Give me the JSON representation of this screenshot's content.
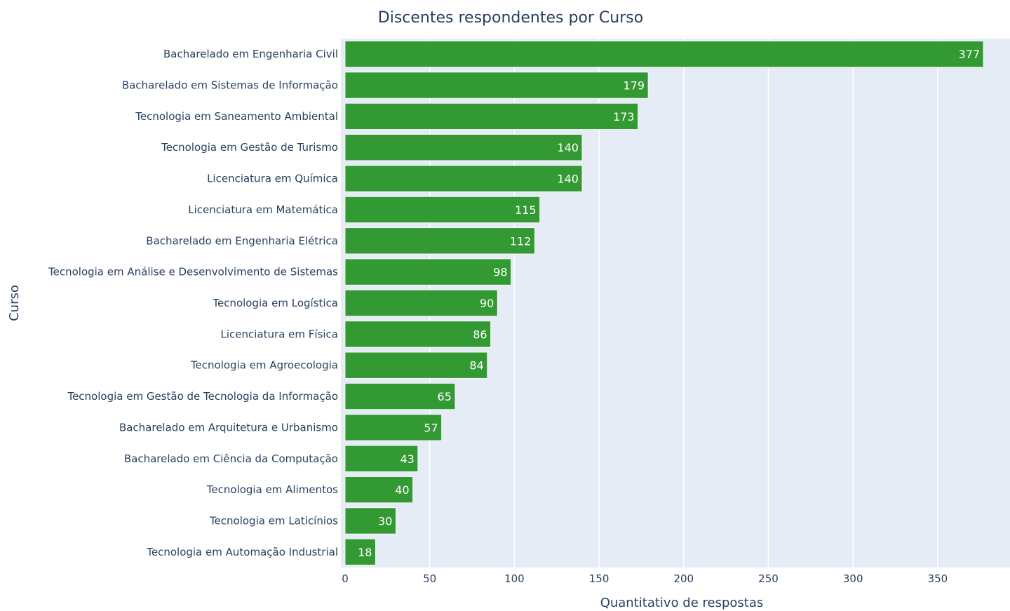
{
  "chart_data": {
    "type": "bar",
    "orientation": "horizontal",
    "title": "Discentes respondentes por Curso",
    "xlabel": "Quantitativo de respostas",
    "ylabel": "Curso",
    "xlim": [
      0,
      395
    ],
    "xticks": [
      0,
      50,
      100,
      150,
      200,
      250,
      300,
      350
    ],
    "grid": true,
    "bar_color": "#339933",
    "plot_bg": "#e5ecf6",
    "categories": [
      "Bacharelado em Engenharia Civil",
      "Bacharelado em Sistemas de Informação",
      "Tecnologia em Saneamento Ambiental",
      "Tecnologia em Gestão de Turismo",
      "Licenciatura em Química",
      "Licenciatura em Matemática",
      "Bacharelado em Engenharia Elétrica",
      "Tecnologia em Análise e Desenvolvimento de Sistemas",
      "Tecnologia em Logística",
      "Licenciatura em Física",
      "Tecnologia em Agroecologia",
      "Tecnologia em Gestão de Tecnologia da Informação",
      "Bacharelado em Arquitetura e Urbanismo",
      "Bacharelado em Ciência da Computação",
      "Tecnologia em Alimentos",
      "Tecnologia em Laticínios",
      "Tecnologia em Automação Industrial"
    ],
    "values": [
      377,
      179,
      173,
      140,
      140,
      115,
      112,
      98,
      90,
      86,
      84,
      65,
      57,
      43,
      40,
      30,
      18
    ]
  }
}
